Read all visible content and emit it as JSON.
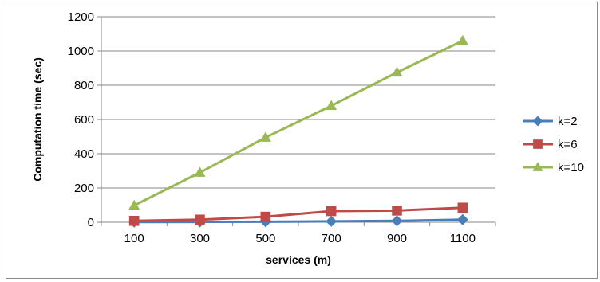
{
  "chart_data": {
    "type": "line",
    "title": "",
    "xlabel": "services (m)",
    "ylabel": "Computation time (sec)",
    "categories": [
      "100",
      "300",
      "500",
      "700",
      "900",
      "1100"
    ],
    "ylim": [
      0,
      1200
    ],
    "yticks": [
      "0",
      "200",
      "400",
      "600",
      "800",
      "1000",
      "1200"
    ],
    "grid": "horizontal",
    "legend_position": "right",
    "series": [
      {
        "name": "k=2",
        "values": [
          1,
          2,
          3,
          5,
          8,
          15
        ],
        "color": "#4a7ebb",
        "marker": "diamond"
      },
      {
        "name": "k=6",
        "values": [
          8,
          15,
          32,
          65,
          68,
          85
        ],
        "color": "#be4b48",
        "marker": "square"
      },
      {
        "name": "k=10",
        "values": [
          98,
          290,
          495,
          680,
          875,
          1060
        ],
        "color": "#98b954",
        "marker": "triangle"
      }
    ]
  }
}
